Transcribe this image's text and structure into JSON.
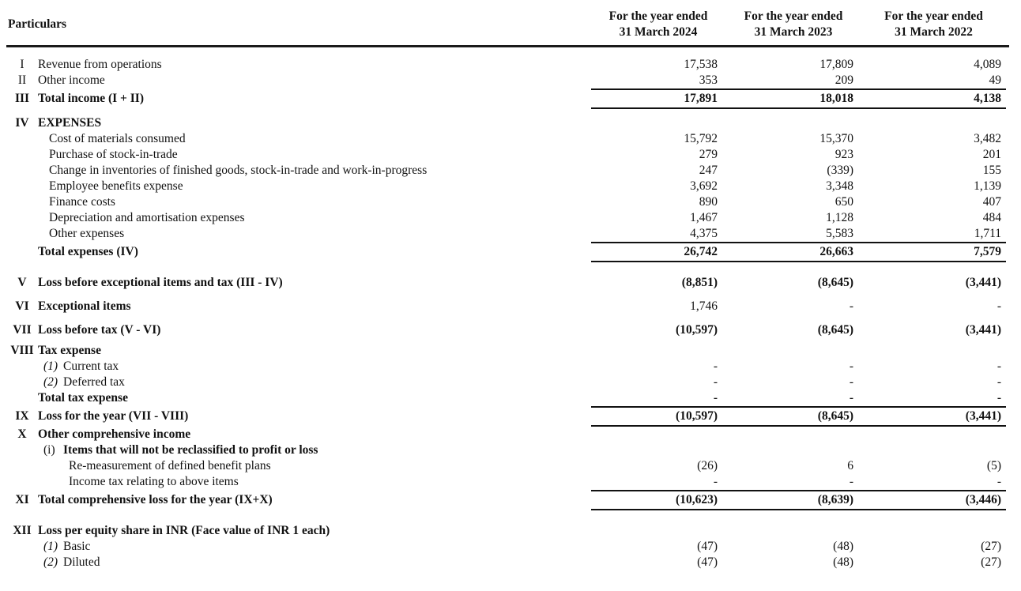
{
  "header": {
    "particulars": "Particulars",
    "columns": [
      {
        "line1": "For the year ended",
        "line2": "31 March 2024"
      },
      {
        "line1": "For the year ended",
        "line2": "31 March 2023"
      },
      {
        "line1": "For the year ended",
        "line2": "31 March 2022"
      }
    ]
  },
  "table": {
    "rows": [
      {
        "num": "I",
        "label": "Revenue from operations",
        "values": [
          "17,538",
          "17,809",
          "4,089"
        ]
      },
      {
        "num": "II",
        "label": "Other income",
        "values": [
          "353",
          "209",
          "49"
        ]
      },
      {
        "num": "III",
        "label": "Total income (I + II)",
        "bold": true,
        "bold_values": true,
        "rules": true,
        "values": [
          "17,891",
          "18,018",
          "4,138"
        ]
      },
      {
        "num": "IV",
        "label": "EXPENSES",
        "bold": true,
        "gap": 8
      },
      {
        "label": "Cost of materials consumed",
        "indent": 1,
        "values": [
          "15,792",
          "15,370",
          "3,482"
        ]
      },
      {
        "label": "Purchase of stock-in-trade",
        "indent": 1,
        "values": [
          "279",
          "923",
          "201"
        ]
      },
      {
        "label": "Change in inventories of finished goods, stock-in-trade and work-in-progress",
        "indent": 1,
        "values": [
          "247",
          "(339)",
          "155"
        ]
      },
      {
        "label": "Employee benefits expense",
        "indent": 1,
        "values": [
          "3,692",
          "3,348",
          "1,139"
        ]
      },
      {
        "label": "Finance costs",
        "indent": 1,
        "values": [
          "890",
          "650",
          "407"
        ]
      },
      {
        "label": "Depreciation and amortisation expenses",
        "indent": 1,
        "values": [
          "1,467",
          "1,128",
          "484"
        ]
      },
      {
        "label": "Other expenses",
        "indent": 1,
        "values": [
          "4,375",
          "5,583",
          "1,711"
        ]
      },
      {
        "label": "Total expenses (IV)",
        "bold": true,
        "bold_values": true,
        "rules": true,
        "values": [
          "26,742",
          "26,663",
          "7,579"
        ]
      },
      {
        "num": "V",
        "label": "Loss before exceptional items and tax (III - IV)",
        "bold": true,
        "bold_values": true,
        "gap": 16,
        "values": [
          "(8,851)",
          "(8,645)",
          "(3,441)"
        ]
      },
      {
        "num": "VI",
        "label": "Exceptional items",
        "bold": true,
        "gap": 10,
        "values": [
          "1,746",
          "-",
          "-"
        ]
      },
      {
        "num": "VII",
        "label": "Loss before tax (V - VI)",
        "bold": true,
        "bold_values": true,
        "gap": 10,
        "values": [
          "(10,597)",
          "(8,645)",
          "(3,441)"
        ]
      },
      {
        "num": "VIII",
        "label": "Tax expense",
        "bold": true,
        "gap": 6
      },
      {
        "marker": "(1)",
        "marker_italic": true,
        "label": "Current tax",
        "values": [
          "-",
          "-",
          "-"
        ]
      },
      {
        "marker": "(2)",
        "marker_italic": true,
        "label": "Deferred tax",
        "values": [
          "-",
          "-",
          "-"
        ]
      },
      {
        "label": "Total tax expense",
        "bold": true,
        "bold_values": true,
        "values": [
          "-",
          "-",
          "-"
        ]
      },
      {
        "num": "IX",
        "label": "Loss for the year (VII - VIII)",
        "bold": true,
        "bold_values": true,
        "rules": true,
        "values": [
          "(10,597)",
          "(8,645)",
          "(3,441)"
        ]
      },
      {
        "num": "X",
        "label": "Other comprehensive income",
        "bold": true
      },
      {
        "marker": "(i)",
        "label": "Items that will not be reclassified to profit or loss",
        "bold": true
      },
      {
        "label": "Re-measurement of defined benefit plans",
        "indent": 3,
        "values": [
          "(26)",
          "6",
          "(5)"
        ]
      },
      {
        "label": "Income tax relating to above items",
        "indent": 3,
        "values": [
          "-",
          "-",
          "-"
        ]
      },
      {
        "num": "XI",
        "label": "Total comprehensive loss for the year (IX+X)",
        "bold": true,
        "bold_values": true,
        "rules": true,
        "values": [
          "(10,623)",
          "(8,639)",
          "(3,446)"
        ]
      },
      {
        "num": "XII",
        "label": "Loss per equity share in INR (Face value of INR 1 each)",
        "bold": true,
        "gap": 16
      },
      {
        "marker": "(1)",
        "marker_italic": true,
        "label": "Basic",
        "values": [
          "(47)",
          "(48)",
          "(27)"
        ]
      },
      {
        "marker": "(2)",
        "marker_italic": true,
        "label": "Diluted",
        "values": [
          "(47)",
          "(48)",
          "(27)"
        ]
      }
    ]
  }
}
